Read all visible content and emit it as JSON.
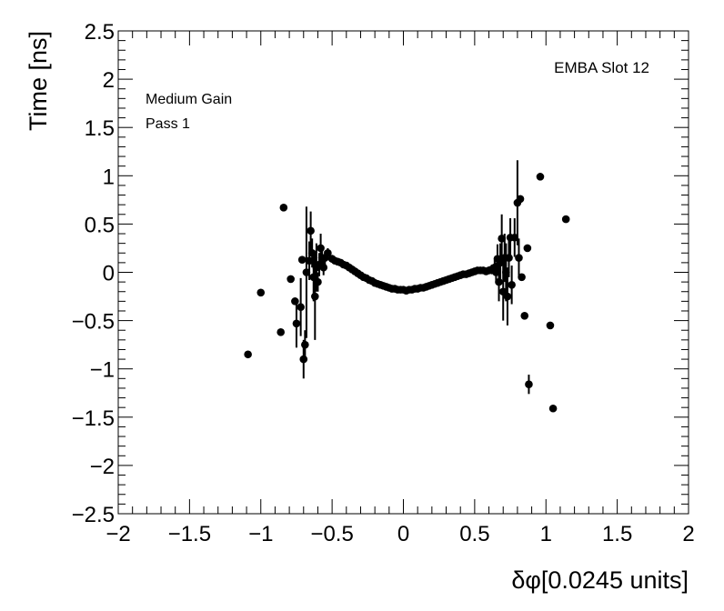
{
  "chart_data": {
    "type": "scatter",
    "title": "",
    "xlabel": "δφ[0.0245 units]",
    "ylabel": "Time [ns]",
    "xlim": [
      -2,
      2
    ],
    "ylim": [
      -2.5,
      2.5
    ],
    "x_ticks": [
      -2,
      -1.5,
      -1,
      -0.5,
      0,
      0.5,
      1,
      1.5,
      2
    ],
    "x_tick_labels": [
      "−2",
      "−1.5",
      "−1",
      "−0.5",
      "0",
      "0.5",
      "1",
      "1.5",
      "2"
    ],
    "y_ticks": [
      -2.5,
      -2,
      -1.5,
      -1,
      -0.5,
      0,
      0.5,
      1,
      1.5,
      2,
      2.5
    ],
    "y_tick_labels": [
      "−2.5",
      "−2",
      "−1.5",
      "−1",
      "−0.5",
      "0",
      "0.5",
      "1",
      "1.5",
      "2",
      "2.5"
    ],
    "grid": false,
    "annotations": {
      "top_right": "EMBA Slot 12",
      "top_left_line1": "Medium Gain",
      "top_left_line2": "Pass 1"
    },
    "marker_color": "#000000",
    "points": [
      {
        "x": -1.09,
        "y": -0.85,
        "err": 0
      },
      {
        "x": -1.0,
        "y": -0.21,
        "err": 0
      },
      {
        "x": -0.86,
        "y": -0.62,
        "err": 0
      },
      {
        "x": -0.84,
        "y": 0.67,
        "err": 0
      },
      {
        "x": -0.79,
        "y": -0.07,
        "err": 0
      },
      {
        "x": -0.76,
        "y": -0.3,
        "err": 0
      },
      {
        "x": -0.75,
        "y": -0.53,
        "err": 0.25
      },
      {
        "x": -0.72,
        "y": -0.36,
        "err": 0.3
      },
      {
        "x": -0.71,
        "y": 0.13,
        "err": 0
      },
      {
        "x": -0.7,
        "y": -0.9,
        "err": 0.2
      },
      {
        "x": -0.69,
        "y": -0.75,
        "err": 0.15
      },
      {
        "x": -0.68,
        "y": 0.0,
        "err": 0.68
      },
      {
        "x": -0.66,
        "y": 0.12,
        "err": 0.2
      },
      {
        "x": -0.65,
        "y": 0.43,
        "err": 0.2
      },
      {
        "x": -0.64,
        "y": 0.2,
        "err": 0.15
      },
      {
        "x": -0.63,
        "y": -0.05,
        "err": 0.25
      },
      {
        "x": -0.62,
        "y": -0.25,
        "err": 0.45
      },
      {
        "x": -0.61,
        "y": 0.05,
        "err": 0.25
      },
      {
        "x": -0.6,
        "y": -0.1,
        "err": 0.1
      },
      {
        "x": -0.59,
        "y": 0.08,
        "err": 0.12
      },
      {
        "x": -0.58,
        "y": 0.25,
        "err": 0.15
      },
      {
        "x": -0.57,
        "y": 0.15,
        "err": 0.12
      },
      {
        "x": -0.56,
        "y": 0.05,
        "err": 0.08
      },
      {
        "x": -0.55,
        "y": 0.15,
        "err": 0.07
      },
      {
        "x": -0.53,
        "y": 0.2,
        "err": 0.05
      },
      {
        "x": -0.5,
        "y": 0.14,
        "err": 0.04
      },
      {
        "x": -0.48,
        "y": 0.12,
        "err": 0.03
      },
      {
        "x": -0.46,
        "y": 0.11,
        "err": 0.03
      },
      {
        "x": -0.44,
        "y": 0.1,
        "err": 0.02
      },
      {
        "x": -0.42,
        "y": 0.08,
        "err": 0.02
      },
      {
        "x": -0.4,
        "y": 0.07,
        "err": 0.02
      },
      {
        "x": -0.38,
        "y": 0.05,
        "err": 0.02
      },
      {
        "x": -0.36,
        "y": 0.03,
        "err": 0.02
      },
      {
        "x": -0.34,
        "y": 0.01,
        "err": 0.01
      },
      {
        "x": -0.32,
        "y": -0.01,
        "err": 0.01
      },
      {
        "x": -0.3,
        "y": -0.03,
        "err": 0.01
      },
      {
        "x": -0.28,
        "y": -0.05,
        "err": 0.01
      },
      {
        "x": -0.26,
        "y": -0.06,
        "err": 0.01
      },
      {
        "x": -0.24,
        "y": -0.08,
        "err": 0.01
      },
      {
        "x": -0.22,
        "y": -0.09,
        "err": 0.01
      },
      {
        "x": -0.2,
        "y": -0.11,
        "err": 0.01
      },
      {
        "x": -0.18,
        "y": -0.12,
        "err": 0.01
      },
      {
        "x": -0.16,
        "y": -0.13,
        "err": 0.01
      },
      {
        "x": -0.14,
        "y": -0.14,
        "err": 0.01
      },
      {
        "x": -0.12,
        "y": -0.15,
        "err": 0.01
      },
      {
        "x": -0.1,
        "y": -0.16,
        "err": 0.01
      },
      {
        "x": -0.08,
        "y": -0.17,
        "err": 0.01
      },
      {
        "x": -0.06,
        "y": -0.17,
        "err": 0.01
      },
      {
        "x": -0.04,
        "y": -0.18,
        "err": 0.01
      },
      {
        "x": -0.02,
        "y": -0.18,
        "err": 0.01
      },
      {
        "x": 0.0,
        "y": -0.18,
        "err": 0.01
      },
      {
        "x": 0.02,
        "y": -0.19,
        "err": 0.01
      },
      {
        "x": 0.04,
        "y": -0.18,
        "err": 0.01
      },
      {
        "x": 0.06,
        "y": -0.18,
        "err": 0.01
      },
      {
        "x": 0.08,
        "y": -0.17,
        "err": 0.01
      },
      {
        "x": 0.1,
        "y": -0.17,
        "err": 0.01
      },
      {
        "x": 0.12,
        "y": -0.16,
        "err": 0.01
      },
      {
        "x": 0.14,
        "y": -0.16,
        "err": 0.01
      },
      {
        "x": 0.16,
        "y": -0.15,
        "err": 0.01
      },
      {
        "x": 0.18,
        "y": -0.14,
        "err": 0.01
      },
      {
        "x": 0.2,
        "y": -0.13,
        "err": 0.01
      },
      {
        "x": 0.22,
        "y": -0.12,
        "err": 0.01
      },
      {
        "x": 0.24,
        "y": -0.11,
        "err": 0.01
      },
      {
        "x": 0.26,
        "y": -0.1,
        "err": 0.01
      },
      {
        "x": 0.28,
        "y": -0.09,
        "err": 0.01
      },
      {
        "x": 0.3,
        "y": -0.08,
        "err": 0.01
      },
      {
        "x": 0.32,
        "y": -0.07,
        "err": 0.01
      },
      {
        "x": 0.34,
        "y": -0.06,
        "err": 0.01
      },
      {
        "x": 0.36,
        "y": -0.05,
        "err": 0.01
      },
      {
        "x": 0.38,
        "y": -0.04,
        "err": 0.01
      },
      {
        "x": 0.4,
        "y": -0.03,
        "err": 0.01
      },
      {
        "x": 0.42,
        "y": -0.02,
        "err": 0.02
      },
      {
        "x": 0.44,
        "y": -0.02,
        "err": 0.02
      },
      {
        "x": 0.46,
        "y": -0.01,
        "err": 0.02
      },
      {
        "x": 0.48,
        "y": 0.0,
        "err": 0.02
      },
      {
        "x": 0.5,
        "y": 0.01,
        "err": 0.02
      },
      {
        "x": 0.52,
        "y": 0.02,
        "err": 0.02
      },
      {
        "x": 0.54,
        "y": 0.02,
        "err": 0.03
      },
      {
        "x": 0.56,
        "y": 0.02,
        "err": 0.03
      },
      {
        "x": 0.58,
        "y": 0.01,
        "err": 0.03
      },
      {
        "x": 0.6,
        "y": 0.02,
        "err": 0.04
      },
      {
        "x": 0.62,
        "y": 0.03,
        "err": 0.05
      },
      {
        "x": 0.64,
        "y": 0.05,
        "err": 0.08
      },
      {
        "x": 0.65,
        "y": 0.0,
        "err": 0.1
      },
      {
        "x": 0.66,
        "y": 0.14,
        "err": 0.15
      },
      {
        "x": 0.67,
        "y": -0.1,
        "err": 0.2
      },
      {
        "x": 0.68,
        "y": 0.1,
        "err": 0.2
      },
      {
        "x": 0.69,
        "y": 0.35,
        "err": 0.25
      },
      {
        "x": 0.7,
        "y": -0.2,
        "err": 0.3
      },
      {
        "x": 0.71,
        "y": 0.15,
        "err": 0.25
      },
      {
        "x": 0.72,
        "y": 0.0,
        "err": 0.3
      },
      {
        "x": 0.73,
        "y": -0.25,
        "err": 0.3
      },
      {
        "x": 0.74,
        "y": 0.15,
        "err": 0.2
      },
      {
        "x": 0.75,
        "y": 0.36,
        "err": 0.2
      },
      {
        "x": 0.76,
        "y": -0.13,
        "err": 0.2
      },
      {
        "x": 0.78,
        "y": 0.36,
        "err": 0.2
      },
      {
        "x": 0.8,
        "y": 0.72,
        "err": 0.44
      },
      {
        "x": 0.81,
        "y": 0.15,
        "err": 0.2
      },
      {
        "x": 0.82,
        "y": 0.76,
        "err": 0
      },
      {
        "x": 0.83,
        "y": -0.05,
        "err": 0
      },
      {
        "x": 0.85,
        "y": -0.45,
        "err": 0
      },
      {
        "x": 0.87,
        "y": 0.25,
        "err": 0
      },
      {
        "x": 0.88,
        "y": -1.16,
        "err": 0.1
      },
      {
        "x": 0.96,
        "y": 0.99,
        "err": 0
      },
      {
        "x": 1.03,
        "y": -0.55,
        "err": 0
      },
      {
        "x": 1.05,
        "y": -1.41,
        "err": 0
      },
      {
        "x": 1.14,
        "y": 0.55,
        "err": 0
      }
    ]
  }
}
